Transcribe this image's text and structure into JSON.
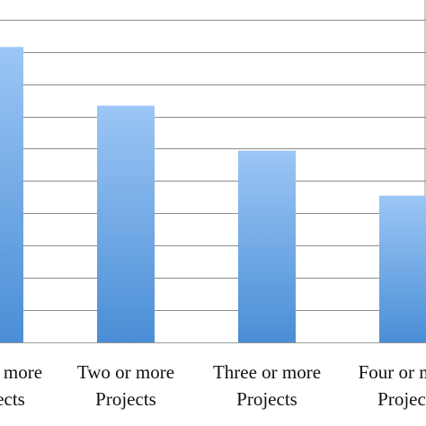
{
  "chart_data": {
    "type": "bar",
    "categories": [
      "One or more Projects",
      "Two or more Projects",
      "Three or more Projects",
      "Four or more Projects"
    ],
    "category_lines": [
      [
        "One or more",
        "Projects"
      ],
      [
        "Two or more",
        "Projects"
      ],
      [
        "Three or more",
        "Projects"
      ],
      [
        "Four or more",
        "Projects"
      ]
    ],
    "values": [
      302,
      242,
      196,
      150
    ],
    "ylim": [
      0,
      350
    ],
    "grid_step": 33,
    "grid": true,
    "colors": {
      "bar_top": "#9cc6f5",
      "bar_bottom": "#4a8ed6",
      "grid": "#8c8c8c",
      "axis": "#9a9a9a"
    }
  }
}
